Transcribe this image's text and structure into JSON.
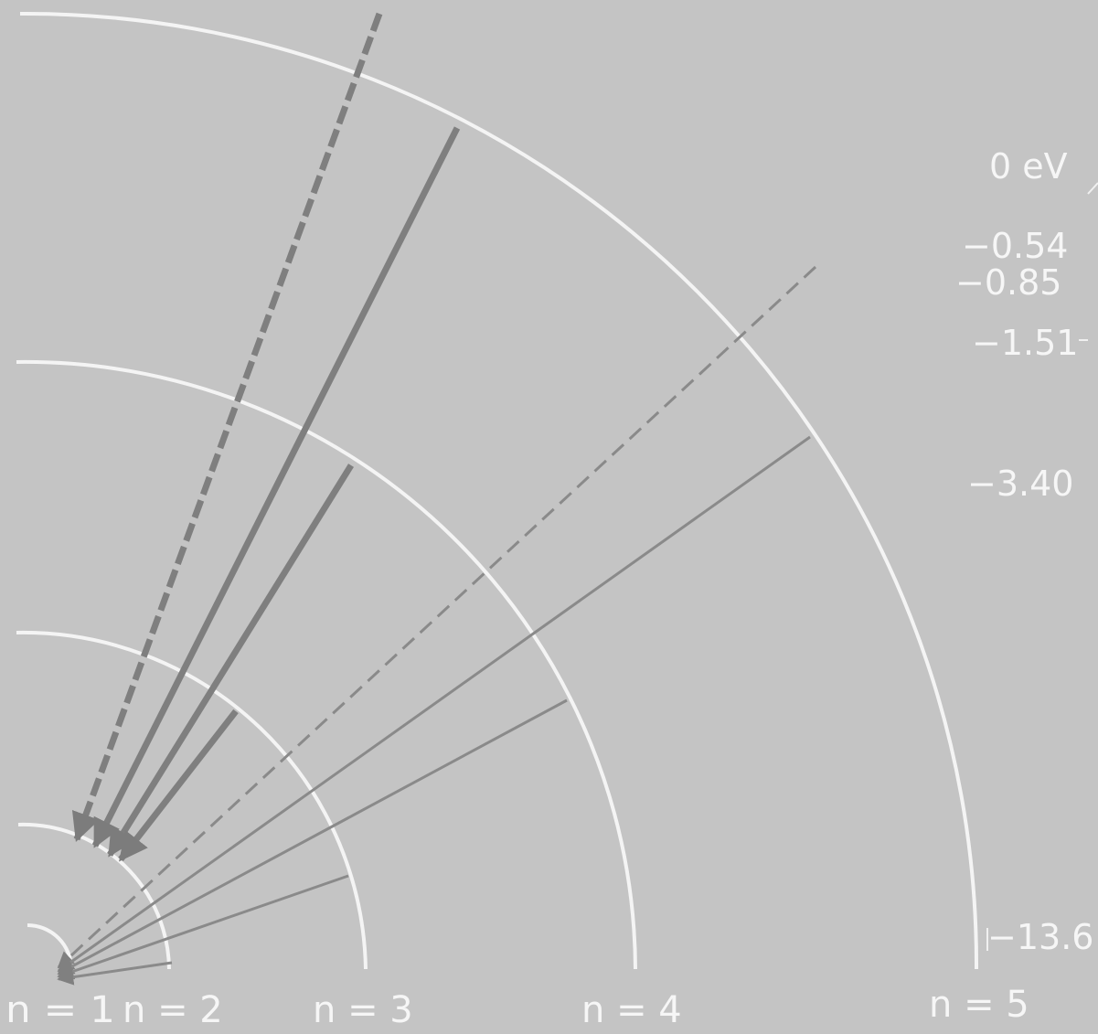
{
  "levels": [
    {
      "n": 1,
      "label": "n = 1",
      "energy_label": "−13.6"
    },
    {
      "n": 2,
      "label": "n = 2",
      "energy_label": "−3.40"
    },
    {
      "n": 3,
      "label": "n = 3",
      "energy_label": "−1.51"
    },
    {
      "n": 4,
      "label": "n = 4",
      "energy_label": "−0.85"
    },
    {
      "n": 5,
      "label": "n = 5",
      "energy_label": "−0.54"
    }
  ],
  "zero_label": "0 eV",
  "transitions": [
    {
      "from": "∞",
      "to": 2,
      "style": "dashed-thick"
    },
    {
      "from": 5,
      "to": 2,
      "style": "solid-thick"
    },
    {
      "from": 4,
      "to": 2,
      "style": "solid-thick"
    },
    {
      "from": 3,
      "to": 2,
      "style": "solid-thick"
    },
    {
      "from": "∞",
      "to": 1,
      "style": "dashed-thin"
    },
    {
      "from": 5,
      "to": 1,
      "style": "solid-thin"
    },
    {
      "from": 4,
      "to": 1,
      "style": "solid-thin"
    },
    {
      "from": 3,
      "to": 1,
      "style": "solid-thin"
    },
    {
      "from": 2,
      "to": 1,
      "style": "solid-thin"
    }
  ],
  "colors": {
    "background": "#c4c4c4",
    "orbit": "#f4f4f4",
    "arrow_thin": "#8a8a8a",
    "arrow_thick": "#7f7f7f",
    "text": "#f6f6f6"
  }
}
